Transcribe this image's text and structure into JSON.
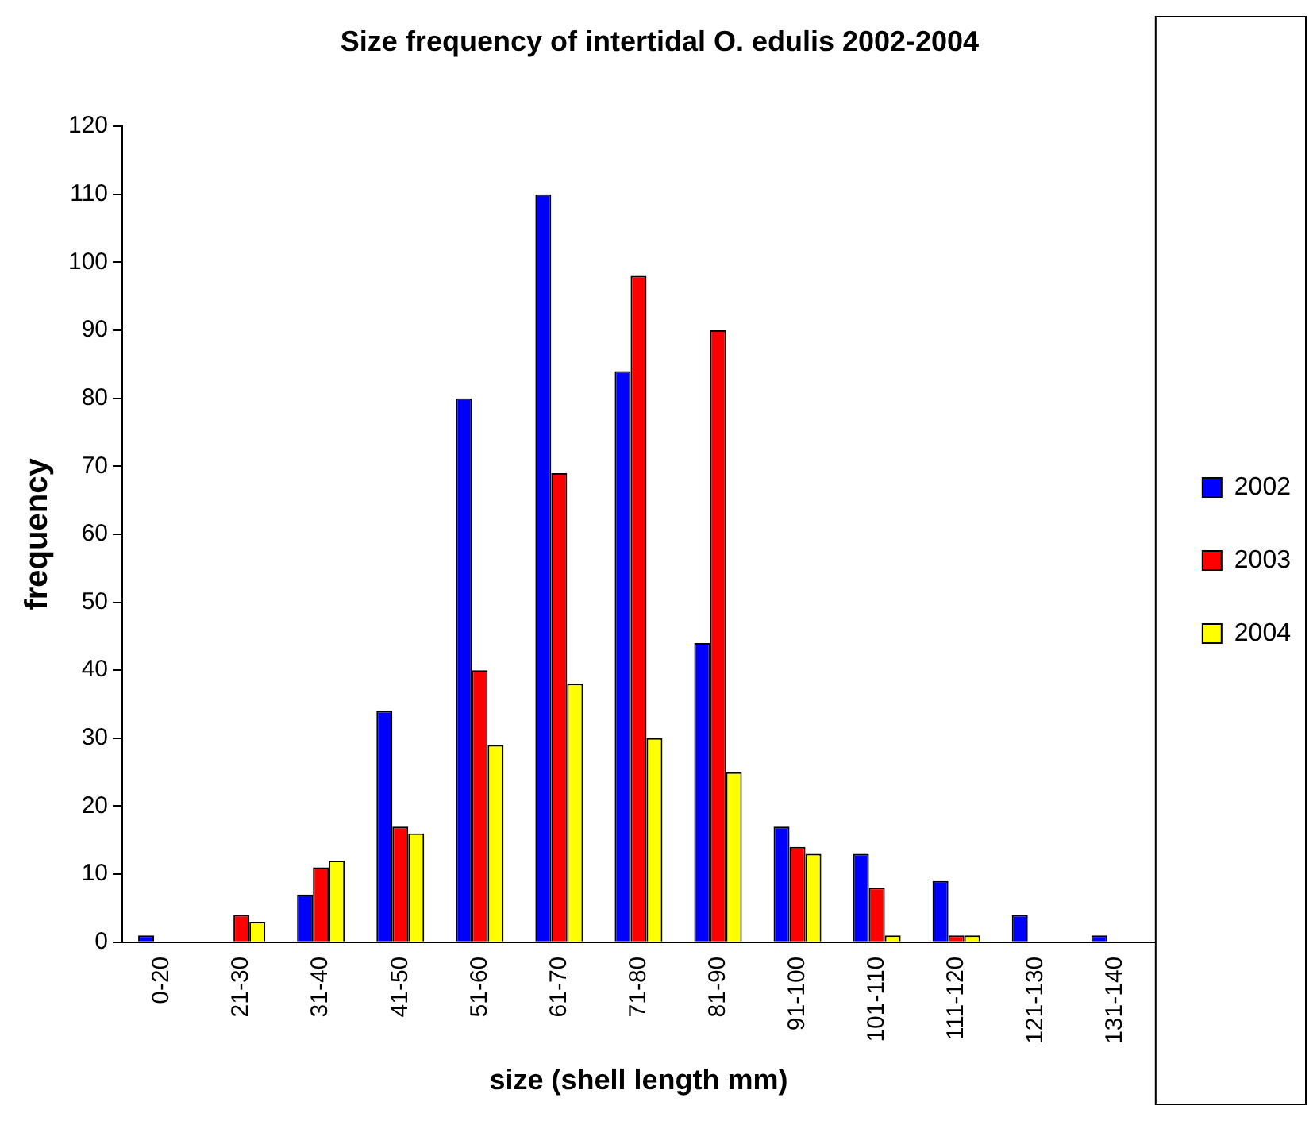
{
  "chart_data": {
    "type": "bar",
    "title": "Size frequency of intertidal O. edulis 2002-2004",
    "xlabel": "size (shell length mm)",
    "ylabel": "frequency",
    "categories": [
      "0-20",
      "21-30",
      "31-40",
      "41-50",
      "51-60",
      "61-70",
      "71-80",
      "81-90",
      "91-100",
      "101-110",
      "111-120",
      "121-130",
      "131-140"
    ],
    "series": [
      {
        "name": "2002",
        "color": "#0000ff",
        "values": [
          1,
          0,
          7,
          34,
          80,
          110,
          84,
          44,
          17,
          13,
          9,
          4,
          1
        ]
      },
      {
        "name": "2003",
        "color": "#ff0000",
        "values": [
          0,
          4,
          11,
          17,
          40,
          69,
          98,
          90,
          14,
          8,
          1,
          0,
          0
        ]
      },
      {
        "name": "2004",
        "color": "#ffff00",
        "values": [
          0,
          3,
          12,
          16,
          29,
          38,
          30,
          25,
          13,
          1,
          1,
          0,
          0
        ]
      }
    ],
    "ylim": [
      0,
      120
    ],
    "yticks": [
      0,
      10,
      20,
      30,
      40,
      50,
      60,
      70,
      80,
      90,
      100,
      110,
      120
    ],
    "grid": false,
    "legend": "right"
  }
}
